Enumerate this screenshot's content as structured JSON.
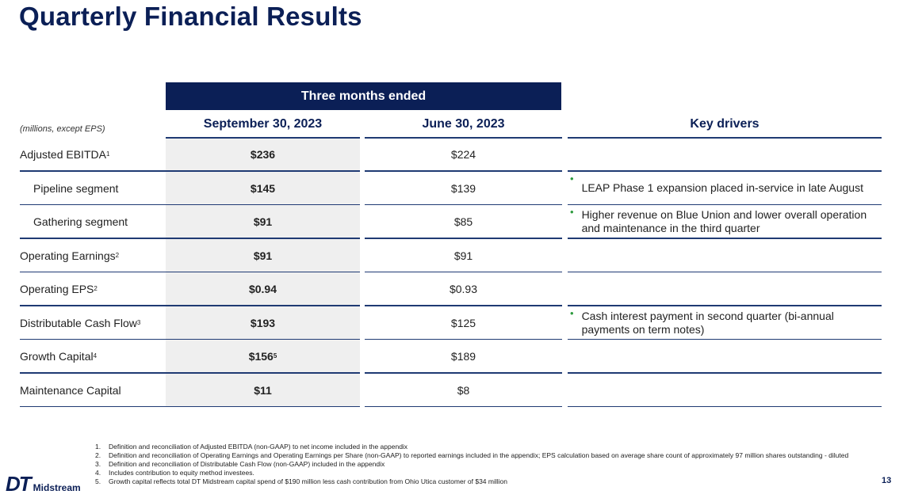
{
  "title": "Quarterly Financial Results",
  "table": {
    "group_header": "Three months ended",
    "units_note": "(millions, except EPS)",
    "col_a": "September 30, 2023",
    "col_b": "June 30, 2023",
    "col_drivers": "Key drivers",
    "rows": [
      {
        "label": "Adjusted EBITDA",
        "label_sup": "1",
        "a": "$236",
        "a_sup": "",
        "b": "$224",
        "driver": ""
      },
      {
        "label": "Pipeline segment",
        "label_sup": "",
        "a": "$145",
        "a_sup": "",
        "b": "$139",
        "driver": "LEAP Phase 1 expansion placed in-service in late August"
      },
      {
        "label": "Gathering segment",
        "label_sup": "",
        "a": "$91",
        "a_sup": "",
        "b": "$85",
        "driver": "Higher revenue on Blue Union and lower overall operation and maintenance in the third quarter"
      },
      {
        "label": "Operating Earnings",
        "label_sup": "2",
        "a": "$91",
        "a_sup": "",
        "b": "$91",
        "driver": ""
      },
      {
        "label": "Operating EPS",
        "label_sup": "2",
        "a": "$0.94",
        "a_sup": "",
        "b": "$0.93",
        "driver": ""
      },
      {
        "label": "Distributable Cash Flow",
        "label_sup": "3",
        "a": "$193",
        "a_sup": "",
        "b": "$125",
        "driver": "Cash interest payment in second quarter (bi-annual payments on term notes)"
      },
      {
        "label": "Growth Capital",
        "label_sup": "4",
        "a": "$156",
        "a_sup": "5",
        "b": "$189",
        "driver": ""
      },
      {
        "label": "Maintenance Capital",
        "label_sup": "",
        "a": "$11",
        "a_sup": "",
        "b": "$8",
        "driver": ""
      }
    ]
  },
  "footnotes": [
    {
      "num": "1.",
      "text": "Definition and reconciliation of Adjusted EBITDA (non-GAAP) to net income included in the appendix"
    },
    {
      "num": "2.",
      "text": "Definition and reconciliation of Operating Earnings and Operating Earnings per Share (non-GAAP) to reported earnings included in the appendix; EPS calculation based on average share count of approximately 97 million shares outstanding - diluted"
    },
    {
      "num": "3.",
      "text": "Definition and reconciliation of Distributable Cash Flow (non-GAAP) included in the appendix"
    },
    {
      "num": "4.",
      "text": "Includes contribution to equity method investees."
    },
    {
      "num": "5.",
      "text": "Growth capital reflects total DT Midstream capital spend of $190 million less cash contribution from Ohio Utica customer of $34 million"
    }
  ],
  "logo": {
    "mark": "DT",
    "name": "Midstream"
  },
  "page_number": "13",
  "colors": {
    "navy": "#0b1f56",
    "bullet_green": "#2e9b3f",
    "shade": "#efefef"
  }
}
